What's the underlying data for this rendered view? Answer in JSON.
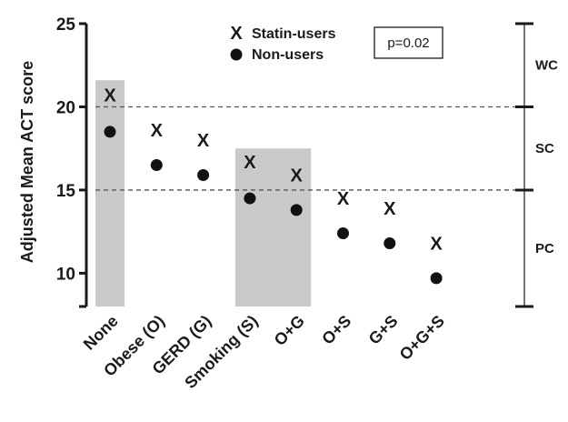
{
  "chart_data": {
    "type": "scatter",
    "ylabel": "Adjusted Mean ACT score",
    "ylim": [
      8,
      25
    ],
    "yticks": [
      10,
      15,
      20,
      25
    ],
    "categories": [
      "None",
      "Obese (O)",
      "GERD (G)",
      "Smoking (S)",
      "O+G",
      "O+S",
      "G+S",
      "O+G+S"
    ],
    "series": [
      {
        "name": "Statin-users",
        "marker": "x",
        "values": [
          20.7,
          18.6,
          18.0,
          16.7,
          15.9,
          14.5,
          13.9,
          11.8
        ]
      },
      {
        "name": "Non-users",
        "marker": "dot",
        "values": [
          18.5,
          16.5,
          15.9,
          14.5,
          13.8,
          12.4,
          11.8,
          9.7
        ]
      }
    ],
    "annotation": "p=0.02",
    "reference_lines": [
      20,
      15
    ],
    "shaded_regions": [
      {
        "from_category": 0,
        "to_category": 0,
        "top": 21.6
      },
      {
        "from_category": 3,
        "to_category": 4,
        "top": 17.5
      }
    ],
    "control_zones": [
      {
        "label": "WC",
        "from": 20,
        "to": 25
      },
      {
        "label": "SC",
        "from": 15,
        "to": 20
      },
      {
        "label": "PC",
        "from": 8,
        "to": 15
      }
    ],
    "legend_position": "top-center",
    "grid": false
  },
  "colors": {
    "shade": "#c9c9c9",
    "marker": "#111111",
    "reference_line": "#555555"
  }
}
